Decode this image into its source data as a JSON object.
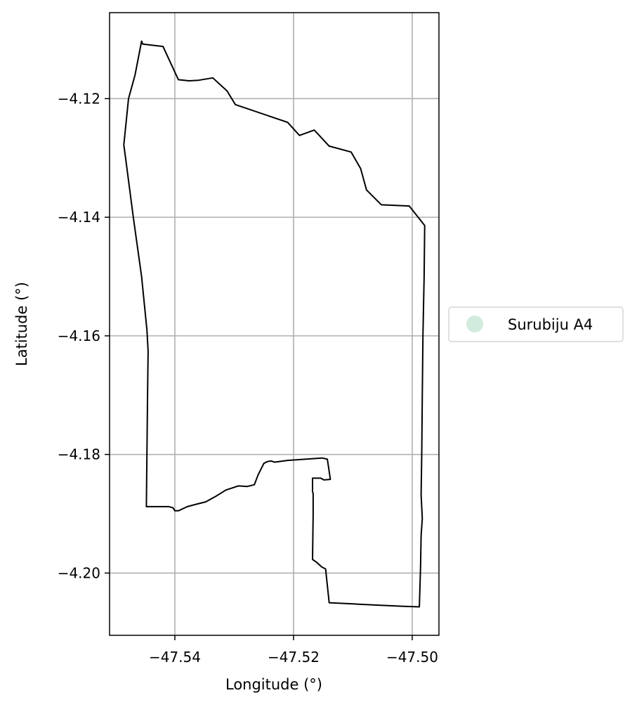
{
  "chart_data": {
    "type": "map",
    "xlabel": "Longitude (°)",
    "ylabel": "Latitude (°)",
    "xlim": [
      -47.551,
      -47.4955
    ],
    "ylim": [
      -4.2105,
      -4.1055
    ],
    "xticks": [
      -47.54,
      -47.52,
      -47.5
    ],
    "xtick_labels": [
      "−47.54",
      "−47.52",
      "−47.50"
    ],
    "yticks": [
      -4.12,
      -4.14,
      -4.16,
      -4.18,
      -4.2
    ],
    "ytick_labels": [
      "−4.12",
      "−4.14",
      "−4.16",
      "−4.18",
      "−4.20"
    ],
    "grid": true,
    "legend": {
      "placement": "right-center",
      "entries": [
        {
          "label": "Surubiju A4",
          "color": "#d1ebdc"
        }
      ]
    },
    "boundary_color": "#000000",
    "boundary": [
      [
        -47.5456,
        -4.1103
      ],
      [
        -47.5454,
        -4.1108
      ],
      [
        -47.542,
        -4.1112
      ],
      [
        -47.5407,
        -4.114
      ],
      [
        -47.5394,
        -4.1168
      ],
      [
        -47.5376,
        -4.117
      ],
      [
        -47.536,
        -4.1169
      ],
      [
        -47.5336,
        -4.1165
      ],
      [
        -47.5312,
        -4.1187
      ],
      [
        -47.5298,
        -4.121
      ],
      [
        -47.521,
        -4.124
      ],
      [
        -47.519,
        -4.1262
      ],
      [
        -47.5165,
        -4.1253
      ],
      [
        -47.514,
        -4.128
      ],
      [
        -47.5103,
        -4.129
      ],
      [
        -47.5087,
        -4.1318
      ],
      [
        -47.5077,
        -4.1354
      ],
      [
        -47.5052,
        -4.1379
      ],
      [
        -47.5005,
        -4.1381
      ],
      [
        -47.4979,
        -4.1414
      ],
      [
        -47.498,
        -4.15
      ],
      [
        -47.4982,
        -4.16
      ],
      [
        -47.4983,
        -4.17
      ],
      [
        -47.4984,
        -4.18
      ],
      [
        -47.4985,
        -4.1868
      ],
      [
        -47.4983,
        -4.1908
      ],
      [
        -47.4985,
        -4.1937
      ],
      [
        -47.4986,
        -4.199
      ],
      [
        -47.4988,
        -4.2057
      ],
      [
        -47.5014,
        -4.2056
      ],
      [
        -47.506,
        -4.2054
      ],
      [
        -47.51,
        -4.2052
      ],
      [
        -47.514,
        -4.205
      ],
      [
        -47.5146,
        -4.1993
      ],
      [
        -47.5152,
        -4.199
      ],
      [
        -47.5161,
        -4.1982
      ],
      [
        -47.5168,
        -4.1977
      ],
      [
        -47.5167,
        -4.19
      ],
      [
        -47.5167,
        -4.1866
      ],
      [
        -47.5168,
        -4.1863
      ],
      [
        -47.5168,
        -4.184
      ],
      [
        -47.5154,
        -4.184
      ],
      [
        -47.5149,
        -4.1843
      ],
      [
        -47.5138,
        -4.1842
      ],
      [
        -47.5143,
        -4.1808
      ],
      [
        -47.5152,
        -4.1806
      ],
      [
        -47.518,
        -4.1808
      ],
      [
        -47.521,
        -4.181
      ],
      [
        -47.5232,
        -4.1813
      ],
      [
        -47.5238,
        -4.1811
      ],
      [
        -47.5244,
        -4.1812
      ],
      [
        -47.525,
        -4.1815
      ],
      [
        -47.526,
        -4.1835
      ],
      [
        -47.5266,
        -4.1851
      ],
      [
        -47.5278,
        -4.1854
      ],
      [
        -47.5293,
        -4.1853
      ],
      [
        -47.5314,
        -4.186
      ],
      [
        -47.533,
        -4.187
      ],
      [
        -47.5348,
        -4.188
      ],
      [
        -47.5364,
        -4.1884
      ],
      [
        -47.5379,
        -4.1888
      ],
      [
        -47.5394,
        -4.1895
      ],
      [
        -47.54,
        -4.1895
      ],
      [
        -47.5403,
        -4.189
      ],
      [
        -47.541,
        -4.1888
      ],
      [
        -47.544,
        -4.1888
      ],
      [
        -47.5448,
        -4.1888
      ],
      [
        -47.5447,
        -4.18
      ],
      [
        -47.5446,
        -4.17
      ],
      [
        -47.5445,
        -4.1626
      ],
      [
        -47.5447,
        -4.159
      ],
      [
        -47.5456,
        -4.15
      ],
      [
        -47.547,
        -4.14
      ],
      [
        -47.5483,
        -4.13
      ],
      [
        -47.5486,
        -4.1278
      ],
      [
        -47.5478,
        -4.12
      ],
      [
        -47.5467,
        -4.116
      ],
      [
        -47.5456,
        -4.1103
      ]
    ]
  }
}
